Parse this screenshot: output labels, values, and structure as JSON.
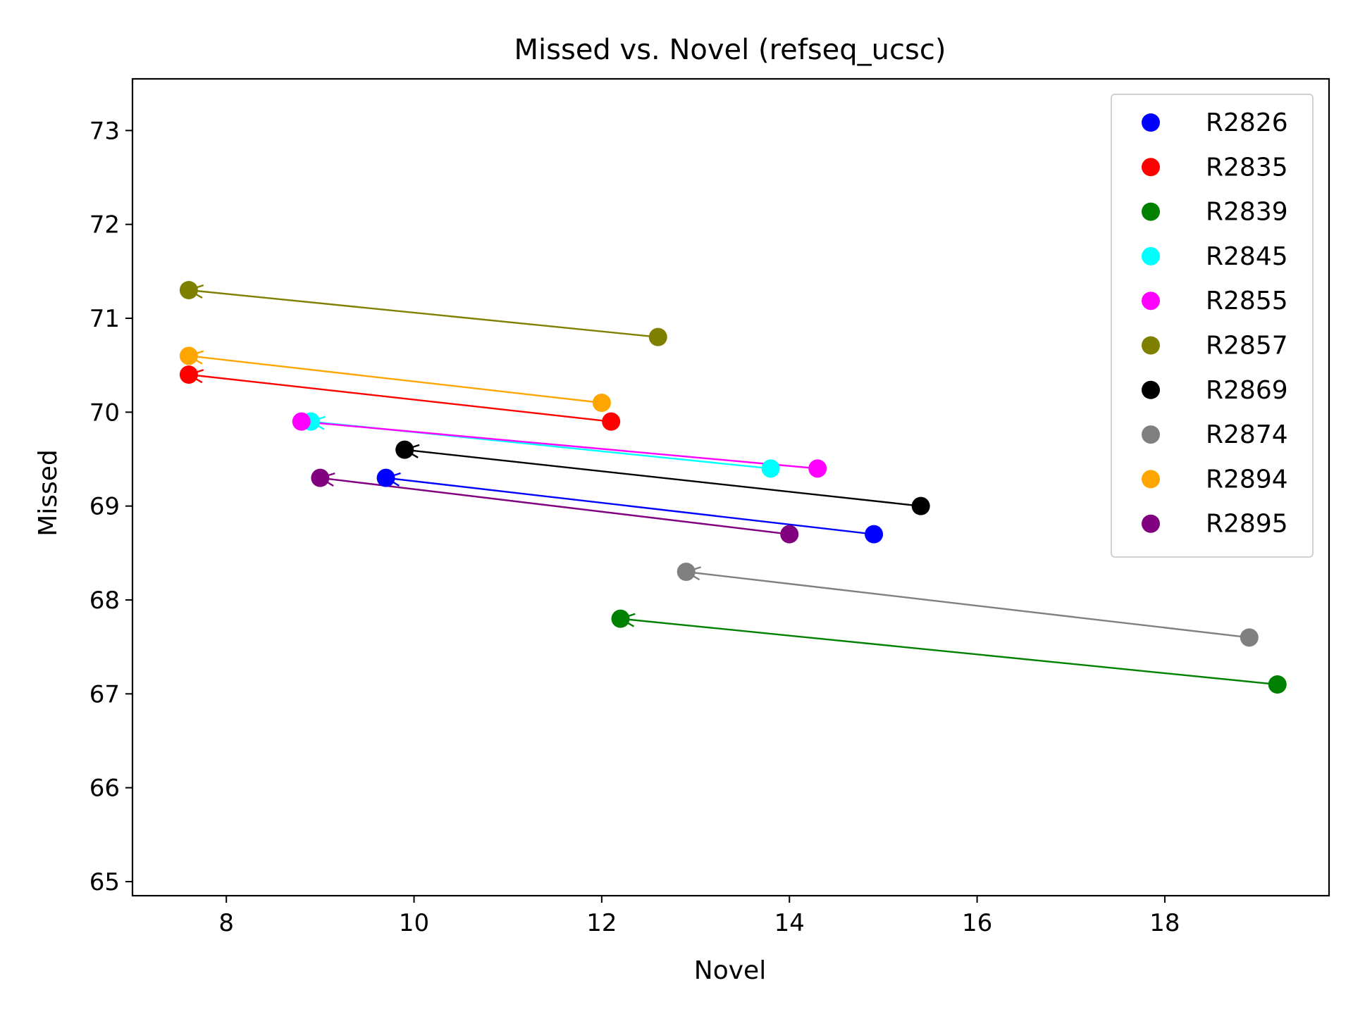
{
  "chart_data": {
    "type": "scatter",
    "title": "Missed vs. Novel (refseq_ucsc)",
    "xlabel": "Novel",
    "ylabel": "Missed",
    "xlim": [
      7.0,
      19.75
    ],
    "ylim": [
      64.85,
      73.55
    ],
    "xticks": [
      8,
      10,
      12,
      14,
      16,
      18
    ],
    "yticks": [
      65,
      66,
      67,
      68,
      69,
      70,
      71,
      72,
      73
    ],
    "grid": false,
    "legend_position": "top-right",
    "annotation": "arrows point from each series' first point to its second point",
    "series": [
      {
        "name": "R2826",
        "color": "#0000ff",
        "points": [
          {
            "x": 14.9,
            "y": 68.7
          },
          {
            "x": 9.7,
            "y": 69.3
          }
        ]
      },
      {
        "name": "R2835",
        "color": "#ff0000",
        "points": [
          {
            "x": 12.1,
            "y": 69.9
          },
          {
            "x": 7.6,
            "y": 70.4
          }
        ]
      },
      {
        "name": "R2839",
        "color": "#008000",
        "points": [
          {
            "x": 19.2,
            "y": 67.1
          },
          {
            "x": 12.2,
            "y": 67.8
          }
        ]
      },
      {
        "name": "R2845",
        "color": "#00ffff",
        "points": [
          {
            "x": 13.8,
            "y": 69.4
          },
          {
            "x": 8.9,
            "y": 69.9
          }
        ]
      },
      {
        "name": "R2855",
        "color": "#ff00ff",
        "points": [
          {
            "x": 14.3,
            "y": 69.4
          },
          {
            "x": 8.8,
            "y": 69.9
          }
        ]
      },
      {
        "name": "R2857",
        "color": "#808000",
        "points": [
          {
            "x": 12.6,
            "y": 70.8
          },
          {
            "x": 7.6,
            "y": 71.3
          }
        ]
      },
      {
        "name": "R2869",
        "color": "#000000",
        "points": [
          {
            "x": 15.4,
            "y": 69.0
          },
          {
            "x": 9.9,
            "y": 69.6
          }
        ]
      },
      {
        "name": "R2874",
        "color": "#808080",
        "points": [
          {
            "x": 18.9,
            "y": 67.6
          },
          {
            "x": 12.9,
            "y": 68.3
          }
        ]
      },
      {
        "name": "R2894",
        "color": "#ffa500",
        "points": [
          {
            "x": 12.0,
            "y": 70.1
          },
          {
            "x": 7.6,
            "y": 70.6
          }
        ]
      },
      {
        "name": "R2895",
        "color": "#800080",
        "points": [
          {
            "x": 14.0,
            "y": 68.7
          },
          {
            "x": 9.0,
            "y": 69.3
          }
        ]
      }
    ]
  }
}
